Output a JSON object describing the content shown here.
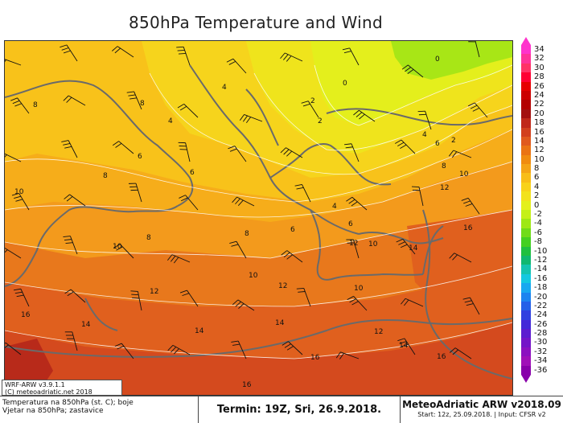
{
  "title": "850hPa Temperature and Wind",
  "map": {
    "isotherm_labels": [
      "0",
      "2",
      "4",
      "6",
      "8",
      "10",
      "12",
      "14",
      "16"
    ]
  },
  "colorbar": {
    "ticks": [
      "34",
      "32",
      "30",
      "28",
      "26",
      "24",
      "22",
      "20",
      "18",
      "16",
      "14",
      "12",
      "10",
      "8",
      "6",
      "4",
      "2",
      "0",
      "-2",
      "-4",
      "-6",
      "-8",
      "-10",
      "-12",
      "-14",
      "-16",
      "-18",
      "-20",
      "-22",
      "-24",
      "-26",
      "-28",
      "-30",
      "-32",
      "-34",
      "-36"
    ],
    "colors": [
      "#ff33cc",
      "#ff3399",
      "#ff3366",
      "#ff0033",
      "#e60000",
      "#cc0000",
      "#b30000",
      "#a31010",
      "#c0281a",
      "#d2401e",
      "#e05a1e",
      "#ea7414",
      "#f08c10",
      "#f4a416",
      "#f8bd18",
      "#f8d21a",
      "#f2e21c",
      "#e4f01c",
      "#c4f018",
      "#9ee814",
      "#70dc18",
      "#44d020",
      "#20c040",
      "#10b870",
      "#14c4b0",
      "#14c8e0",
      "#18a8f0",
      "#1c84f0",
      "#2460e8",
      "#3040e0",
      "#4428d8",
      "#5c1cd0",
      "#7414c8",
      "#8c10c0",
      "#a010b8",
      "#8800aa"
    ],
    "accent_top": "#ff33cc",
    "accent_bottom": "#8800aa"
  },
  "info_box": {
    "line1": "WRF-ARW v3.9.1.1",
    "line2": "(C) meteoadriatic.net 2018"
  },
  "footer": {
    "left_line1": "Temperatura na 850hPa (st. C); boje",
    "left_line2": "Vjetar na 850hPa; zastavice",
    "termin": "Termin: 19Z, Sri, 26.9.2018.",
    "brand": "MeteoAdriatic ARW v2018.09",
    "start": "Start: 12z, 25.09.2018. | Input: CFSR v2"
  }
}
